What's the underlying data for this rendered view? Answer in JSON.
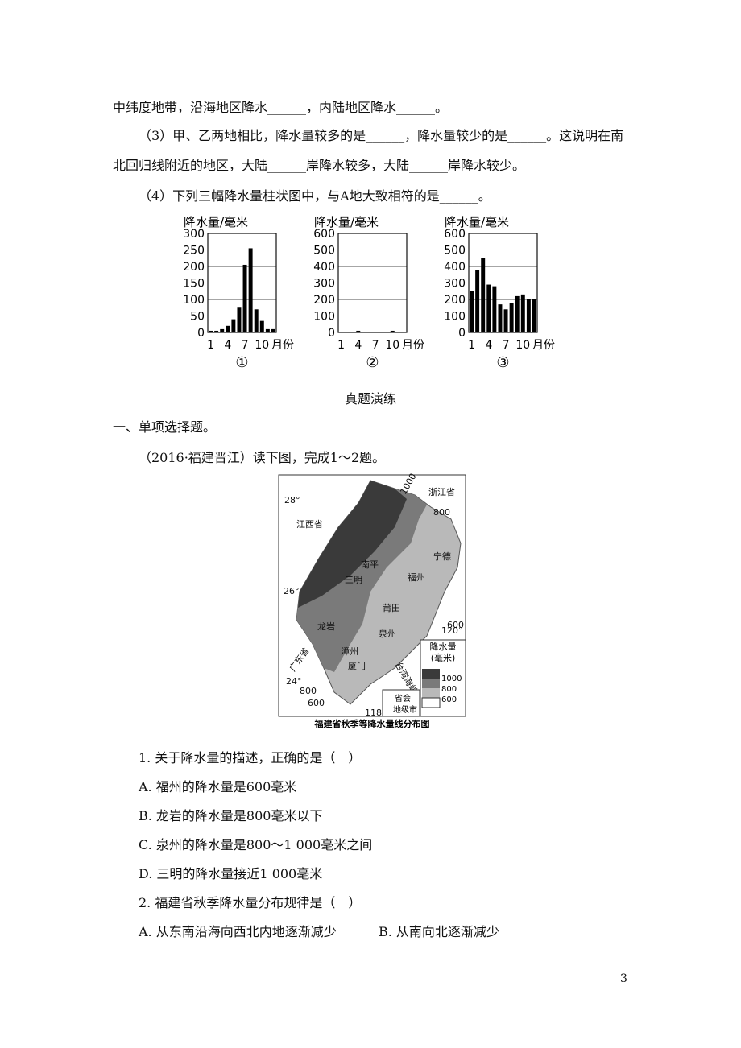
{
  "document": {
    "line1": "中纬度地带，沿海地区降水______，内陆地区降水______。",
    "q3": "（3）甲、乙两地相比，降水量较多的是______，降水量较少的是______。这说明在南北回归线附近的地区，大陆______岸降水较多，大陆______岸降水较少。",
    "q4": "（4）下列三幅降水量柱状图中，与A地大致相符的是______。",
    "section": "真题演练",
    "part": "一、单项选择题。",
    "intro": "（2016·福建晋江）读下图，完成1～2题。",
    "questions": [
      {
        "stem": "1. 关于降水量的描述，正确的是（　）",
        "options": [
          "A. 福州的降水量是600毫米",
          "B. 龙岩的降水量是800毫米以下",
          "C. 泉州的降水量是800～1 000毫米之间",
          "D. 三明的降水量接近1 000毫米"
        ]
      },
      {
        "stem": "2. 福建省秋季降水量分布规律是（　）",
        "options": [
          "A. 从东南沿海向西北内地逐渐减少",
          "B. 从南向北逐渐减少"
        ]
      }
    ],
    "page_number": "3"
  },
  "map": {
    "caption": "福建省秋季等降水量线分布图",
    "labels": [
      "28°",
      "26°",
      "24°",
      "120°",
      "118°",
      "江西省",
      "浙江省",
      "南平",
      "三明",
      "宁德",
      "福州",
      "莆田",
      "泉州",
      "龙岩",
      "漳州",
      "厦门",
      "广东省",
      "台湾海峡",
      "1000",
      "800",
      "600",
      "800",
      "600"
    ],
    "legend": {
      "title": "降水量",
      "unit": "(毫米)",
      "values": [
        "1000",
        "800",
        "600"
      ],
      "capital": "省会",
      "city": "地级市"
    }
  },
  "chart_data": [
    {
      "type": "bar",
      "y_label": "降水量/毫米",
      "x_label": "月份",
      "caption": "①",
      "color": "#000000",
      "categories": [
        "1",
        null,
        null,
        "4",
        null,
        null,
        "7",
        null,
        null,
        "10",
        null,
        null
      ],
      "values": [
        5,
        5,
        10,
        20,
        40,
        75,
        205,
        255,
        70,
        35,
        10,
        10
      ],
      "ylim": [
        0,
        300
      ],
      "yticks": [
        0,
        50,
        100,
        150,
        200,
        250,
        300
      ]
    },
    {
      "type": "bar",
      "y_label": "降水量/毫米",
      "x_label": "月份",
      "caption": "②",
      "color": "#000000",
      "categories": [
        "1",
        null,
        null,
        "4",
        null,
        null,
        "7",
        null,
        null,
        "10",
        null,
        null
      ],
      "values": [
        0,
        0,
        0,
        10,
        0,
        0,
        0,
        0,
        0,
        10,
        0,
        0
      ],
      "ylim": [
        0,
        600
      ],
      "yticks": [
        0,
        100,
        200,
        300,
        400,
        500,
        600
      ]
    },
    {
      "type": "bar",
      "y_label": "降水量/毫米",
      "x_label": "月份",
      "caption": "③",
      "color": "#000000",
      "categories": [
        "1",
        null,
        null,
        "4",
        null,
        null,
        "7",
        null,
        null,
        "10",
        null,
        null
      ],
      "values": [
        250,
        380,
        450,
        290,
        280,
        170,
        140,
        180,
        220,
        230,
        200,
        200
      ],
      "ylim": [
        0,
        600
      ],
      "yticks": [
        0,
        100,
        200,
        300,
        400,
        500,
        600
      ]
    }
  ]
}
